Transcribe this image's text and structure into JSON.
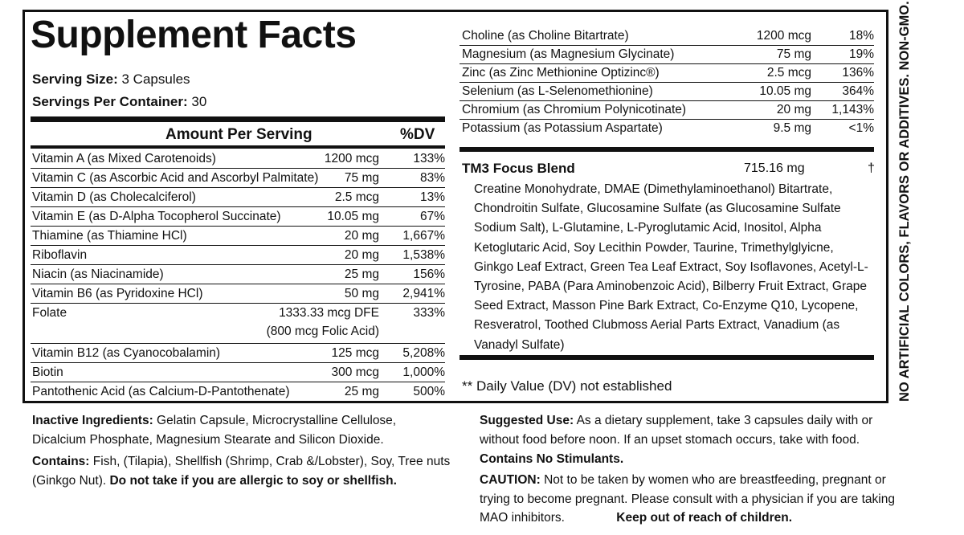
{
  "title": "Supplement Facts",
  "serving_size_label": "Serving Size:",
  "serving_size_value": "3 Capsules",
  "servings_label": "Servings Per Container:",
  "servings_value": "30",
  "header_amount": "Amount Per Serving",
  "header_dv": "%DV",
  "left_rows": [
    {
      "name": "Vitamin A (as Mixed Carotenoids)",
      "amount": "1200 mcg",
      "dv": "133%"
    },
    {
      "name": "Vitamin C (as Ascorbic Acid and Ascorbyl Palmitate)",
      "amount": "75 mg",
      "dv": "83%"
    },
    {
      "name": "Vitamin D (as Cholecalciferol)",
      "amount": "2.5 mcg",
      "dv": "13%"
    },
    {
      "name": "Vitamin E (as D-Alpha Tocopherol Succinate)",
      "amount": "10.05 mg",
      "dv": "67%"
    },
    {
      "name": "Thiamine (as Thiamine HCl)",
      "amount": "20 mg",
      "dv": "1,667%"
    },
    {
      "name": "Riboflavin",
      "amount": "20 mg",
      "dv": "1,538%"
    },
    {
      "name": "Niacin (as Niacinamide)",
      "amount": "25 mg",
      "dv": "156%"
    },
    {
      "name": "Vitamin B6 (as Pyridoxine HCl)",
      "amount": "50 mg",
      "dv": "2,941%"
    },
    {
      "name": "Folate",
      "amount": "1333.33 mcg DFE",
      "amount2": "(800 mcg Folic Acid)",
      "dv": "333%"
    },
    {
      "name": "Vitamin B12 (as Cyanocobalamin)",
      "amount": "125 mcg",
      "dv": "5,208%"
    },
    {
      "name": "Biotin",
      "amount": "300 mcg",
      "dv": "1,000%"
    },
    {
      "name": "Pantothenic Acid (as Calcium-D-Pantothenate)",
      "amount": "25 mg",
      "dv": "500%"
    }
  ],
  "right_rows": [
    {
      "name": "Choline (as Choline Bitartrate)",
      "amount": "1200 mcg",
      "dv": "18%"
    },
    {
      "name": "Magnesium (as Magnesium Glycinate)",
      "amount": "75 mg",
      "dv": "19%"
    },
    {
      "name": "Zinc (as Zinc Methionine Optizinc®)",
      "amount": "2.5 mcg",
      "dv": "136%"
    },
    {
      "name": "Selenium (as L-Selenomethionine)",
      "amount": "10.05 mg",
      "dv": "364%"
    },
    {
      "name": "Chromium (as Chromium Polynicotinate)",
      "amount": "20 mg",
      "dv": "1,143%"
    },
    {
      "name": "Potassium (as Potassium Aspartate)",
      "amount": "9.5 mg",
      "dv": "<1%"
    }
  ],
  "blend": {
    "title": "TM3 Focus Blend",
    "amount": "715.16 mg",
    "dagger": "†",
    "ingredients": "Creatine Monohydrate, DMAE (Dimethylaminoethanol) Bitartrate, Chondroitin Sulfate, Glucosamine Sulfate (as Glucosamine Sulfate Sodium Salt), L-Glutamine, L-Pyroglutamic Acid, Inositol, Alpha Ketoglutaric Acid, Soy Lecithin Powder, Taurine, Trimethylglyicne, Ginkgo Leaf Extract, Green Tea Leaf Extract, Soy Isoflavones, Acetyl-L-Tyrosine, PABA (Para Aminobenzoic Acid), Bilberry Fruit Extract, Grape Seed Extract, Masson Pine Bark Extract, Co-Enzyme Q10, Lycopene, Resveratrol, Toothed Clubmoss Aerial Parts Extract, Vanadium (as Vanadyl Sulfate)"
  },
  "dv_note": "** Daily Value (DV) not established",
  "side_text": "NO ARTIFICIAL COLORS, FLAVORS OR ADDITIVES. NON-GMO.",
  "inactive_label": "Inactive Ingredients:",
  "inactive_text": "Gelatin Capsule, Microcrystalline Cellulose, Dicalcium Phosphate, Magnesium Stearate and Silicon Dioxide.",
  "contains_label": "Contains:",
  "contains_text": "Fish, (Tilapia), Shellfish (Shrimp, Crab &/Lobster), Soy, Tree nuts (Ginkgo Nut).",
  "allergy_warning": "Do not take if you are allergic to soy or shellfish.",
  "suggested_label": "Suggested Use:",
  "suggested_text": "As a dietary supplement, take 3 capsules daily with or without food before noon. If an upset stomach occurs, take with food.",
  "no_stimulants": "Contains No Stimulants.",
  "caution_label": "CAUTION:",
  "caution_text": "Not to be taken by women who are breastfeeding, pregnant or trying to become pregnant. Please consult with a physician if you are taking MAO inhibitors.",
  "keep_out": "Keep out of reach of children."
}
